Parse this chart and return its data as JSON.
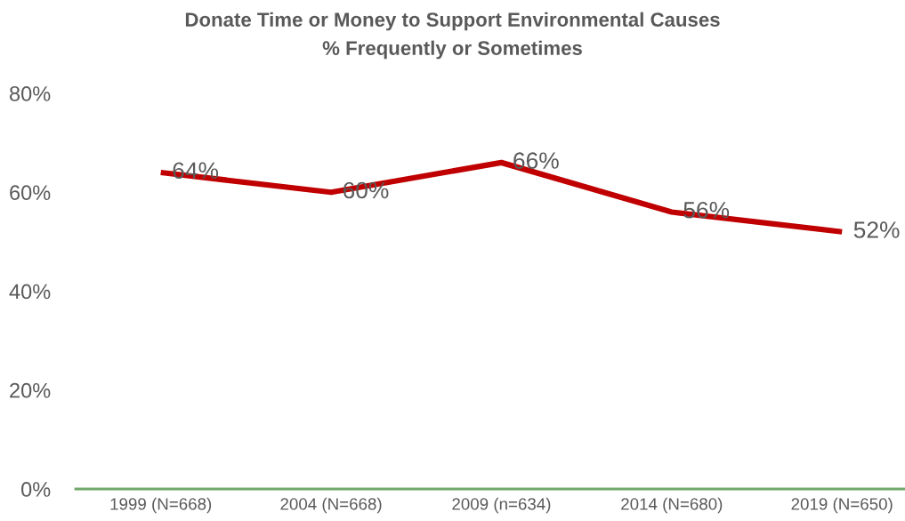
{
  "chart_data": {
    "type": "line",
    "title": "Donate Time or Money to Support Environmental Causes",
    "subtitle": "% Frequently or Sometimes",
    "categories": [
      "1999 (N=668)",
      "2004 (N=668)",
      "2009 (n=634)",
      "2014 (N=680)",
      "2019 (N=650)"
    ],
    "series": [
      {
        "color": "#c00000",
        "values": [
          64,
          60,
          66,
          56,
          52
        ],
        "value_labels": [
          "64%",
          "60%",
          "66%",
          "56%",
          "52%"
        ]
      }
    ],
    "ylim": [
      0,
      80
    ],
    "yticks": [
      {
        "value": 0,
        "label": "0%"
      },
      {
        "value": 20,
        "label": "20%"
      },
      {
        "value": 40,
        "label": "40%"
      },
      {
        "value": 60,
        "label": "60%"
      },
      {
        "value": 80,
        "label": "80%"
      }
    ],
    "grid": false,
    "marker": "none",
    "line_style": "solid"
  }
}
